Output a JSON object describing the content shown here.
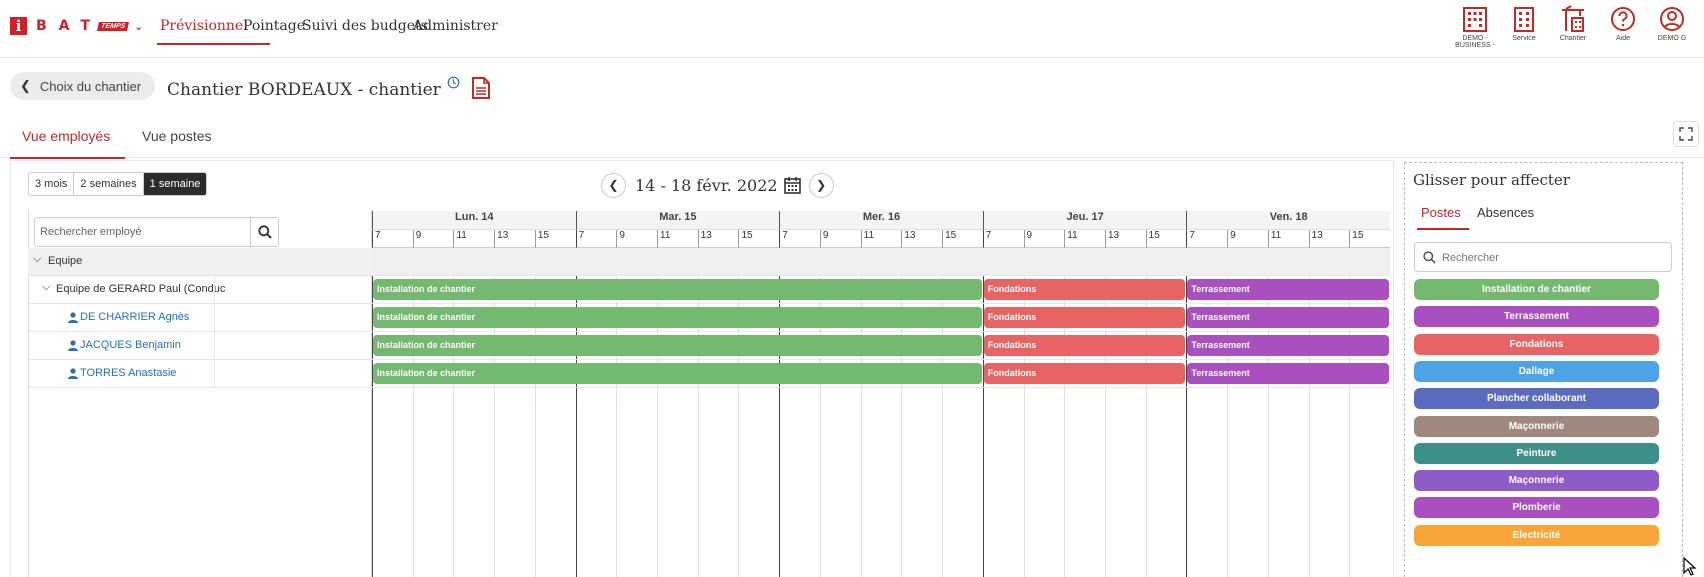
{
  "app": {
    "logo_letter": "i",
    "logo_text": "BAT",
    "logo_sub": "TEMPS"
  },
  "nav": [
    {
      "label": "Prévisionnel",
      "active": true
    },
    {
      "label": "Pointage",
      "active": false
    },
    {
      "label": "Suivi des budgets",
      "active": false
    },
    {
      "label": "Administrer",
      "active": false
    }
  ],
  "top_icons": [
    {
      "name": "building-icon",
      "label": "DEMO - BUSINESS -"
    },
    {
      "name": "office-icon",
      "label": "Service"
    },
    {
      "name": "crane-icon",
      "label": "Chantier"
    },
    {
      "name": "help-icon",
      "label": "Aide"
    },
    {
      "name": "user-icon",
      "label": "DEMO G"
    }
  ],
  "page": {
    "back_label": "Choix du chantier",
    "title": "Chantier BORDEAUX - chantier"
  },
  "tabs": [
    {
      "label": "Vue employés",
      "active": true
    },
    {
      "label": "Vue postes",
      "active": false
    }
  ],
  "range_buttons": [
    {
      "label": "3 mois",
      "selected": false
    },
    {
      "label": "2 semaines",
      "selected": false
    },
    {
      "label": "1 semaine",
      "selected": true
    }
  ],
  "date_range": "14 - 18 févr. 2022",
  "search": {
    "placeholder": "Rechercher employé"
  },
  "days": [
    "Lun. 14",
    "Mar. 15",
    "Mer. 16",
    "Jeu. 17",
    "Ven. 18"
  ],
  "hours": [
    "7",
    "9",
    "11",
    "13",
    "15"
  ],
  "tree": [
    {
      "label": "Equipe",
      "level": 0,
      "type": "group"
    },
    {
      "label": "Equipe de GERARD Paul (Conduc",
      "level": 1,
      "type": "team"
    },
    {
      "label": "DE CHARRIER Agnès",
      "level": 2,
      "type": "employee"
    },
    {
      "label": "JACQUES Benjamin",
      "level": 2,
      "type": "employee"
    },
    {
      "label": "TORRES Anastasie",
      "level": 2,
      "type": "employee"
    }
  ],
  "assignments": [
    {
      "label": "Installation de chantier",
      "start_day": 0,
      "end_day": 3,
      "color": "#73b96f"
    },
    {
      "label": "Fondations",
      "start_day": 3,
      "end_day": 4,
      "color": "#e86464"
    },
    {
      "label": "Terrassement",
      "start_day": 4,
      "end_day": 5,
      "color": "#aa4fc0"
    }
  ],
  "right_panel": {
    "title": "Glisser pour affecter",
    "tabs": [
      {
        "label": "Postes",
        "active": true
      },
      {
        "label": "Absences",
        "active": false
      }
    ],
    "search_placeholder": "Rechercher",
    "postes": [
      {
        "label": "Installation de chantier",
        "color": "#73b96f"
      },
      {
        "label": "Terrassement",
        "color": "#aa4fc0"
      },
      {
        "label": "Fondations",
        "color": "#e86464"
      },
      {
        "label": "Dallage",
        "color": "#4da3e6"
      },
      {
        "label": "Plancher collaborant",
        "color": "#5c6bc0"
      },
      {
        "label": "Maçonnerie",
        "color": "#a1887f"
      },
      {
        "label": "Peinture",
        "color": "#3d9088"
      },
      {
        "label": "Maçonnerie",
        "color": "#8e5cc8"
      },
      {
        "label": "Plomberie",
        "color": "#aa4fc0"
      },
      {
        "label": "Electricité",
        "color": "#f9a53a"
      }
    ]
  }
}
